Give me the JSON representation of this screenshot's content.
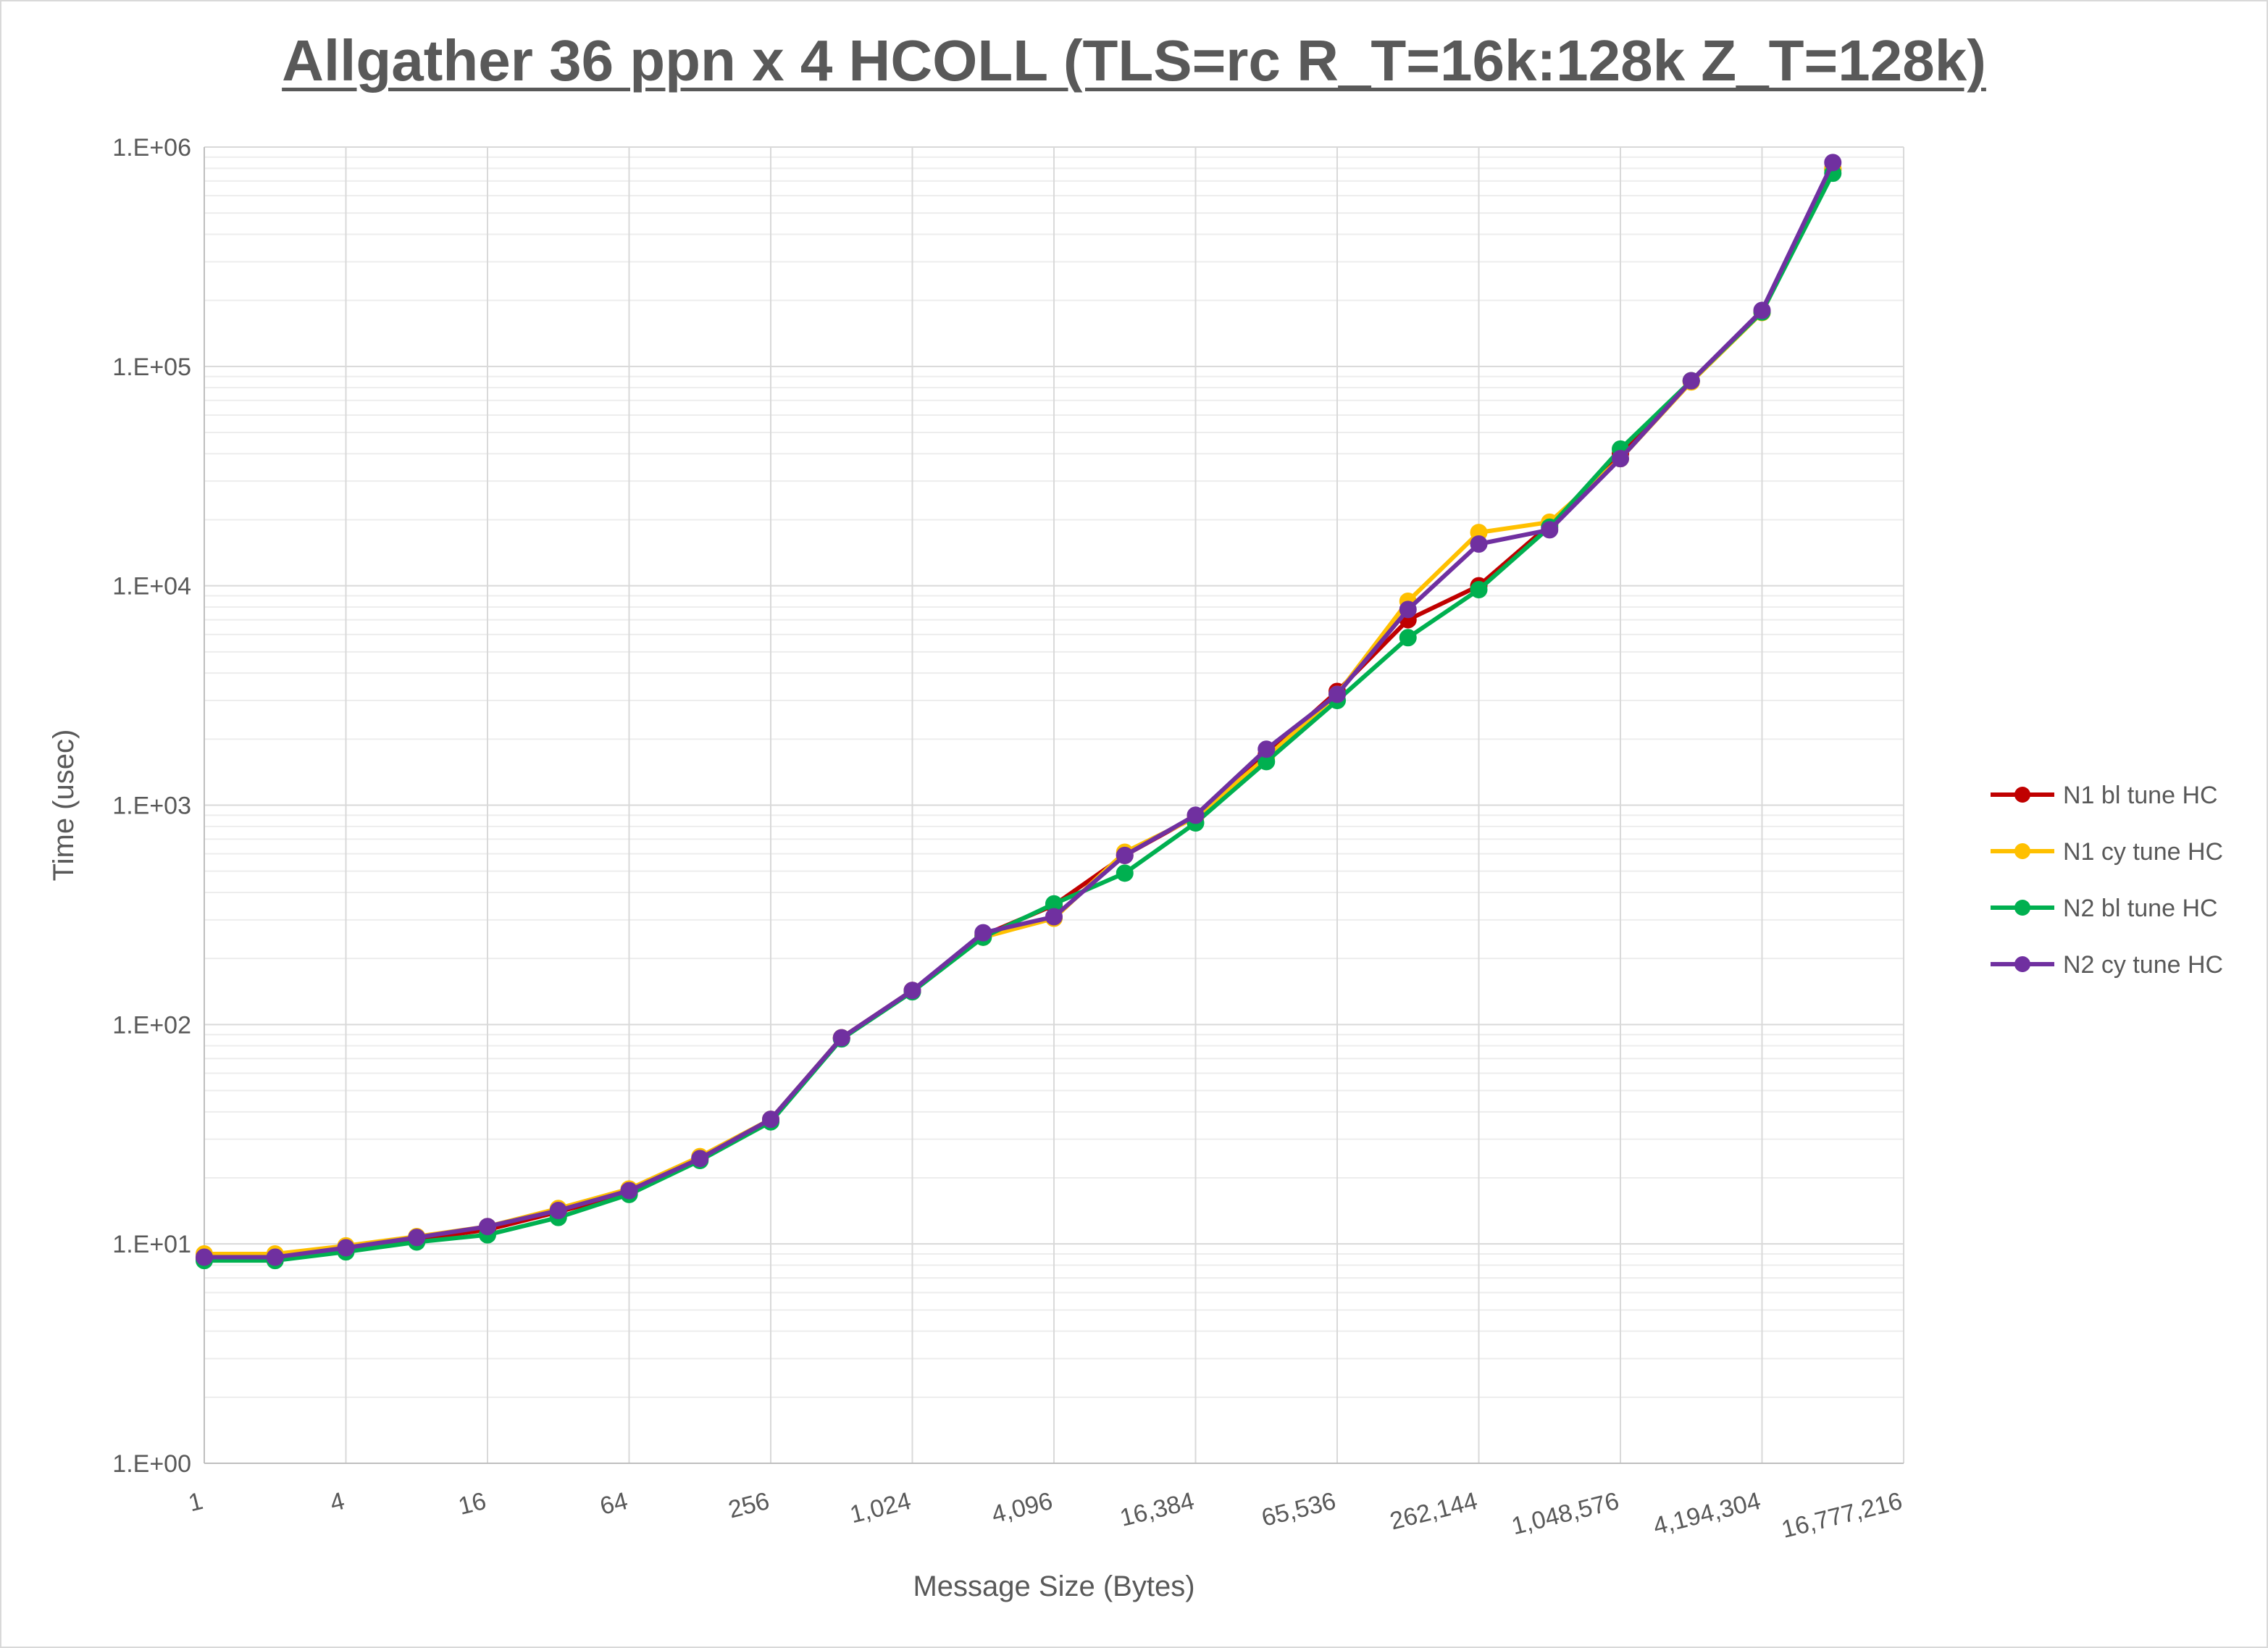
{
  "chart_data": {
    "type": "line",
    "title": "Allgather 36 ppn x 4 HCOLL (TLS=rc R_T=16k:128k Z_T=128k)",
    "xlabel": "Message Size (Bytes)",
    "ylabel": "Time (usec)",
    "x_scale": "log2",
    "y_scale": "log10",
    "xlim": [
      1,
      16777216
    ],
    "ylim": [
      1,
      1000000
    ],
    "x_tick_labels": [
      "1",
      "4",
      "16",
      "64",
      "256",
      "1,024",
      "4,096",
      "16,384",
      "65,536",
      "262,144",
      "1,048,576",
      "4,194,304",
      "16,777,216"
    ],
    "y_tick_labels": [
      "1.E+00",
      "1.E+01",
      "1.E+02",
      "1.E+03",
      "1.E+04",
      "1.E+05",
      "1.E+06"
    ],
    "grid": true,
    "legend_position": "right",
    "x": [
      1,
      2,
      4,
      8,
      16,
      32,
      64,
      128,
      256,
      512,
      1024,
      2048,
      4096,
      8192,
      16384,
      32768,
      65536,
      131072,
      262144,
      524288,
      1048576,
      2097152,
      4194304,
      8388608
    ],
    "series": [
      {
        "name": "N1 bl tune HC",
        "color": "#c00000",
        "values": [
          8.6,
          8.6,
          9.4,
          10.5,
          11.6,
          14.0,
          17.0,
          24.5,
          36.5,
          87,
          143,
          255,
          350,
          590,
          890,
          1700,
          3300,
          7000,
          10000,
          19000,
          40000,
          86000,
          178000,
          790000
        ]
      },
      {
        "name": "N1 cy tune HC",
        "color": "#ffc000",
        "values": [
          9.0,
          9.0,
          9.8,
          10.8,
          12.0,
          14.5,
          17.8,
          25.0,
          37.0,
          87,
          142,
          250,
          305,
          610,
          880,
          1650,
          3200,
          8500,
          17500,
          19500,
          38000,
          85000,
          176000,
          800000
        ]
      },
      {
        "name": "N2 bl tune HC",
        "color": "#00b050",
        "values": [
          8.4,
          8.4,
          9.2,
          10.2,
          11.0,
          13.2,
          16.8,
          24.0,
          36.0,
          86,
          141,
          250,
          355,
          490,
          830,
          1580,
          3000,
          5800,
          9600,
          18500,
          42000,
          86000,
          177000,
          760000
        ]
      },
      {
        "name": "N2 cy tune HC",
        "color": "#7030a0",
        "values": [
          8.7,
          8.7,
          9.6,
          10.7,
          12.0,
          14.2,
          17.5,
          24.5,
          37.0,
          87,
          143,
          262,
          310,
          590,
          900,
          1800,
          3200,
          7800,
          15500,
          18000,
          38000,
          86000,
          180000,
          850000
        ]
      }
    ]
  }
}
